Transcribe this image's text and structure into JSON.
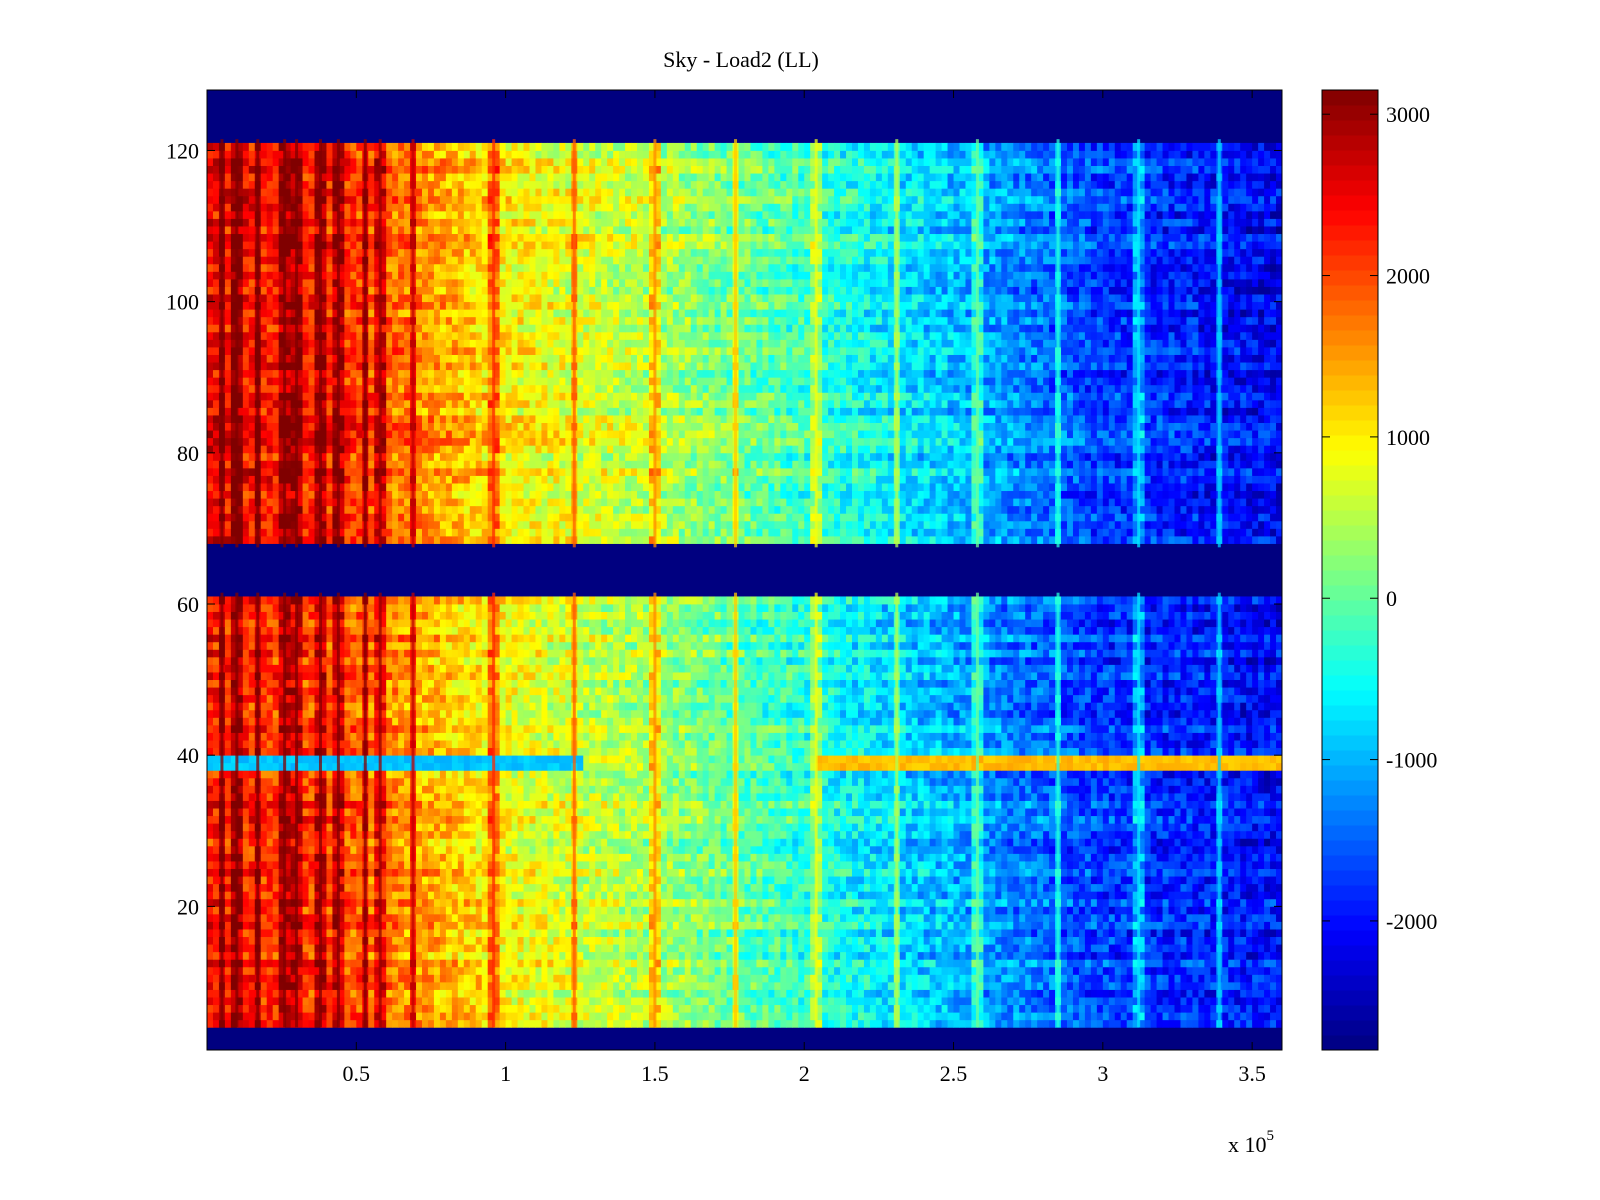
{
  "chart_data": {
    "type": "heatmap",
    "title": "Sky - Load2 (LL)",
    "xlabel": "",
    "ylabel": "",
    "x_multiplier_label": "x 10",
    "x_multiplier_exponent": "5",
    "xlim": [
      0,
      360000
    ],
    "ylim": [
      1,
      128
    ],
    "x_ticks": [
      {
        "value": 50000,
        "label": "0.5"
      },
      {
        "value": 100000,
        "label": "1"
      },
      {
        "value": 150000,
        "label": "1.5"
      },
      {
        "value": 200000,
        "label": "2"
      },
      {
        "value": 250000,
        "label": "2.5"
      },
      {
        "value": 300000,
        "label": "3"
      },
      {
        "value": 350000,
        "label": "3.5"
      }
    ],
    "y_ticks": [
      {
        "value": 20,
        "label": "20"
      },
      {
        "value": 40,
        "label": "40"
      },
      {
        "value": 60,
        "label": "60"
      },
      {
        "value": 80,
        "label": "80"
      },
      {
        "value": 100,
        "label": "100"
      },
      {
        "value": 120,
        "label": "120"
      }
    ],
    "colorbar": {
      "colormap": "jet",
      "clim": [
        -2800,
        3150
      ],
      "ticks": [
        {
          "value": 3000,
          "label": "3000"
        },
        {
          "value": 2000,
          "label": "2000"
        },
        {
          "value": 1000,
          "label": "1000"
        },
        {
          "value": 0,
          "label": "0"
        },
        {
          "value": -1000,
          "label": "-1000"
        },
        {
          "value": -2000,
          "label": "-2000"
        }
      ]
    },
    "masked_bands_y": [
      [
        1,
        4
      ],
      [
        61.5,
        67.5
      ],
      [
        121.5,
        128
      ]
    ],
    "gradient": {
      "description": "value decreases roughly linearly with x across the band",
      "x_points": [
        0,
        50000,
        100000,
        150000,
        200000,
        250000,
        300000,
        360000
      ],
      "values_upper_rows": [
        2500,
        2100,
        1000,
        500,
        -200,
        -900,
        -1700,
        -2100
      ],
      "values_lower_rows": [
        2300,
        1900,
        900,
        400,
        -300,
        -1000,
        -1700,
        -2000
      ]
    },
    "bright_column_x": [
      5000,
      10000,
      17000,
      26000,
      30000,
      38000,
      44000,
      53000,
      58000,
      69000,
      96000,
      123000,
      150000,
      177000,
      204000,
      231000,
      258000,
      285000,
      312000,
      339000
    ],
    "anomaly_rows": [
      {
        "y": 39,
        "x_range": [
          0,
          125000
        ],
        "value": -900
      },
      {
        "y": 39,
        "x_range": [
          205000,
          360000
        ],
        "value": 1300
      }
    ]
  }
}
